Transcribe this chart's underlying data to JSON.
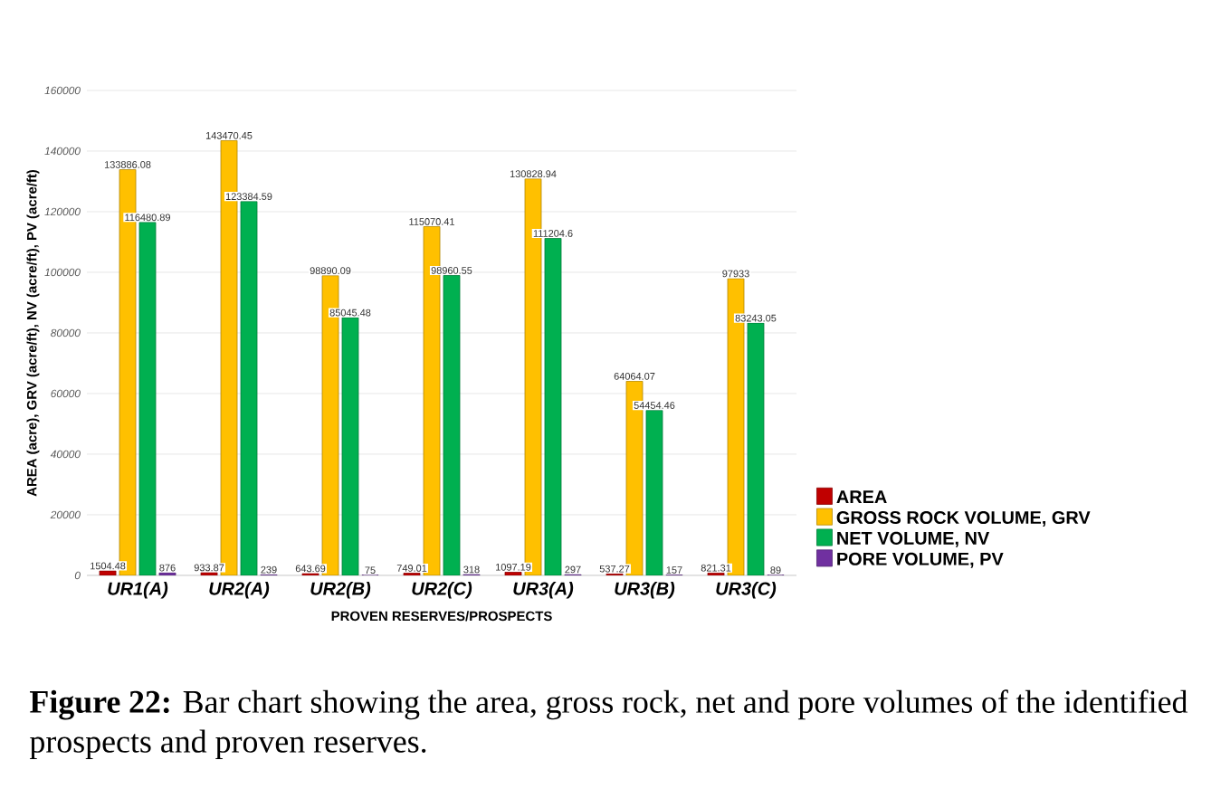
{
  "chart_data": {
    "type": "bar",
    "categories": [
      "UR1(A)",
      "UR2(A)",
      "UR2(B)",
      "UR2(C)",
      "UR3(A)",
      "UR3(B)",
      "UR3(C)"
    ],
    "series": [
      {
        "name": "AREA",
        "color": "#c00000",
        "values": [
          1504.48,
          933.87,
          643.69,
          749.01,
          1097.19,
          537.27,
          821.31
        ]
      },
      {
        "name": "GROSS ROCK VOLUME, GRV",
        "color": "#ffc000",
        "values": [
          133886.08,
          143470.45,
          98890.09,
          115070.41,
          130828.94,
          64064.07,
          97933
        ]
      },
      {
        "name": "NET VOLUME, NV",
        "color": "#00b050",
        "values": [
          116480.89,
          123384.59,
          85045.48,
          98960.55,
          111204.6,
          54454.46,
          83243.05
        ]
      },
      {
        "name": "PORE VOLUME, PV",
        "color": "#7030a0",
        "values": [
          876,
          239,
          75,
          318,
          297,
          157,
          89
        ]
      }
    ],
    "xlabel": "PROVEN RESERVES/PROSPECTS",
    "ylabel": "AREA (acre), GRV (acre/ft), NV (acre/ft), PV (acre/ft)",
    "ylim": [
      0,
      160000
    ],
    "yticks": [
      0,
      20000,
      40000,
      60000,
      80000,
      100000,
      120000,
      140000,
      160000
    ],
    "grid": "y",
    "legend": "bottom right",
    "data_labels": true,
    "annotations": [
      "**Figure 22:** Bar chart showing the area, gross rock, net and pore volumes of the identified prospects and proven reserves."
    ]
  }
}
